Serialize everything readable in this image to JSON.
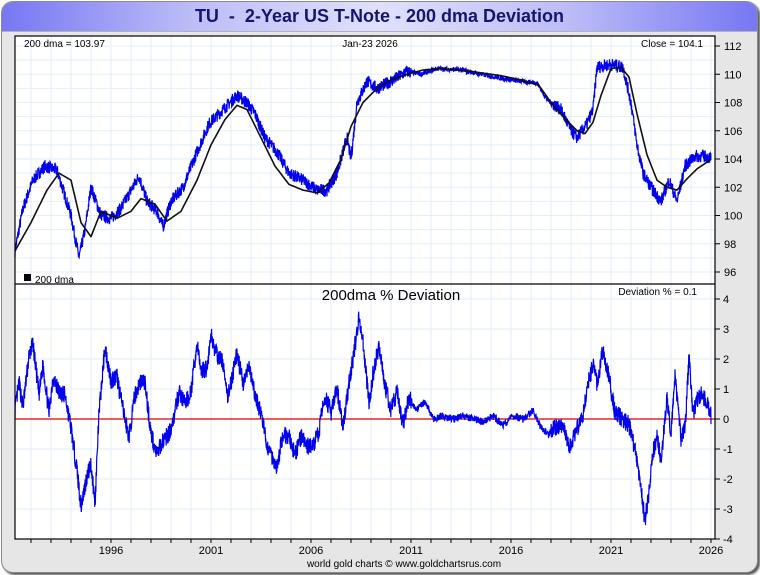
{
  "window": {
    "title": "TU  -  2-Year US T-Note - 200 dma Deviation",
    "footer": "world gold charts © www.goldchartsrus.com"
  },
  "colors": {
    "price": "#0000ee",
    "dma": "#111111",
    "deviation": "#0000ee",
    "zero_line": "#dd0000",
    "grid": "#e3eef8",
    "title_text": "#15156e"
  },
  "chart_data": [
    {
      "type": "line",
      "panel": "price",
      "title": "",
      "header_left": "200 dma = 103.97",
      "header_center": "Jan-23  2026",
      "header_right": "Close = 104.1",
      "legend": [
        {
          "label": "200 dma",
          "color": "#111111"
        }
      ],
      "legend_position": "bottom-left",
      "xlim": [
        1991.2,
        2026.2
      ],
      "ylim": [
        95.5,
        112.7
      ],
      "yticks": [
        96,
        98,
        100,
        102,
        104,
        106,
        108,
        110,
        112
      ],
      "grid": true,
      "series": [
        {
          "name": "Close",
          "x": [
            1991.2,
            1991.6,
            1992.1,
            1992.7,
            1993.3,
            1994.0,
            1994.4,
            1994.7,
            1995.0,
            1995.5,
            1996.0,
            1996.5,
            1997.4,
            1997.8,
            1998.3,
            1998.6,
            1999.0,
            1999.6,
            2000.3,
            2000.9,
            2001.6,
            2002.3,
            2002.8,
            2003.2,
            2003.7,
            2004.3,
            2004.9,
            2005.6,
            2006.3,
            2006.8,
            2007.3,
            2007.8,
            2008.0,
            2008.3,
            2008.8,
            2009.3,
            2010.0,
            2010.8,
            2011.5,
            2012.3,
            2013.5,
            2014.5,
            2015.6,
            2016.5,
            2017.3,
            2017.8,
            2018.5,
            2019.0,
            2019.3,
            2019.8,
            2020.1,
            2020.3,
            2021.0,
            2021.6,
            2022.0,
            2022.3,
            2022.6,
            2023.0,
            2023.5,
            2023.9,
            2024.3,
            2024.7,
            2025.2,
            2025.6,
            2026.0
          ],
          "values": [
            97.5,
            100.5,
            102.5,
            103.5,
            103.2,
            100.0,
            97.0,
            99.0,
            102.0,
            100.0,
            99.8,
            100.5,
            102.8,
            101.0,
            100.3,
            99.2,
            101.0,
            102.0,
            104.5,
            106.5,
            107.5,
            108.5,
            108.0,
            107.2,
            105.5,
            104.5,
            103.0,
            102.5,
            101.8,
            101.8,
            103.0,
            105.5,
            104.0,
            108.0,
            109.5,
            109.0,
            109.5,
            110.2,
            110.0,
            110.4,
            110.3,
            110.0,
            109.7,
            109.5,
            109.4,
            108.2,
            107.5,
            106.0,
            105.5,
            106.5,
            107.5,
            110.5,
            110.7,
            110.5,
            108.0,
            105.0,
            103.0,
            102.0,
            101.0,
            102.5,
            101.0,
            103.5,
            104.2,
            104.2,
            104.1
          ]
        },
        {
          "name": "200 dma",
          "x": [
            1991.2,
            1992.0,
            1992.8,
            1993.4,
            1994.0,
            1994.5,
            1995.0,
            1995.5,
            1996.3,
            1997.0,
            1997.5,
            1998.2,
            1998.8,
            1999.5,
            2000.3,
            2001.0,
            2001.7,
            2002.3,
            2002.8,
            2003.5,
            2004.2,
            2004.9,
            2005.6,
            2006.3,
            2006.9,
            2007.5,
            2008.0,
            2008.6,
            2009.3,
            2010.0,
            2010.8,
            2011.6,
            2012.5,
            2014.0,
            2015.5,
            2016.5,
            2017.4,
            2018.0,
            2018.6,
            2019.3,
            2019.7,
            2020.1,
            2020.5,
            2021.0,
            2021.5,
            2021.9,
            2022.3,
            2022.8,
            2023.3,
            2023.8,
            2024.3,
            2024.8,
            2025.3,
            2026.0
          ],
          "values": [
            97.5,
            99.5,
            101.8,
            103.0,
            102.5,
            99.5,
            98.5,
            100.3,
            99.8,
            100.3,
            101.2,
            100.8,
            99.6,
            100.3,
            102.5,
            105.0,
            106.8,
            107.8,
            107.5,
            105.5,
            103.5,
            102.2,
            101.8,
            101.6,
            102.3,
            104.0,
            106.3,
            108.0,
            109.0,
            109.6,
            110.0,
            110.3,
            110.4,
            110.2,
            109.9,
            109.6,
            109.2,
            108.0,
            107.0,
            106.0,
            105.8,
            106.6,
            108.5,
            110.4,
            110.5,
            109.8,
            107.2,
            104.3,
            102.5,
            102.0,
            101.8,
            102.6,
            103.3,
            103.97
          ]
        }
      ]
    },
    {
      "type": "line",
      "panel": "deviation",
      "title": "200dma  %  Deviation",
      "header_right": "Deviation % = 0.1",
      "xlabel": "",
      "ylabel": "",
      "xlim": [
        1991.2,
        2026.2
      ],
      "ylim": [
        -4,
        4
      ],
      "yticks": [
        4,
        3,
        2,
        1,
        0,
        -1,
        -2,
        -3,
        -4
      ],
      "xticks": [
        1996,
        2001,
        2006,
        2011,
        2016,
        2021,
        2026
      ],
      "grid": true,
      "reference_line": 0,
      "series": [
        {
          "name": "Deviation %",
          "x": [
            1991.2,
            1991.4,
            1991.6,
            1991.9,
            1992.1,
            1992.4,
            1992.6,
            1992.9,
            1993.1,
            1993.4,
            1993.7,
            1994.0,
            1994.3,
            1994.5,
            1994.8,
            1995.0,
            1995.2,
            1995.4,
            1995.7,
            1996.0,
            1996.3,
            1996.6,
            1996.9,
            1997.2,
            1997.5,
            1997.7,
            1998.0,
            1998.3,
            1998.6,
            1998.9,
            1999.2,
            1999.4,
            1999.7,
            2000.0,
            2000.3,
            2000.5,
            2000.8,
            2001.0,
            2001.3,
            2001.6,
            2001.8,
            2002.1,
            2002.3,
            2002.6,
            2002.9,
            2003.2,
            2003.5,
            2003.8,
            2004.1,
            2004.3,
            2004.6,
            2004.9,
            2005.2,
            2005.5,
            2005.8,
            2006.1,
            2006.4,
            2006.7,
            2007.0,
            2007.3,
            2007.6,
            2007.9,
            2008.1,
            2008.4,
            2008.6,
            2008.9,
            2009.1,
            2009.4,
            2009.7,
            2010.0,
            2010.3,
            2010.6,
            2010.9,
            2011.3,
            2011.7,
            2012.1,
            2012.6,
            2013.1,
            2013.6,
            2014.1,
            2014.6,
            2015.1,
            2015.6,
            2016.1,
            2016.6,
            2017.1,
            2017.5,
            2017.9,
            2018.2,
            2018.6,
            2018.9,
            2019.2,
            2019.6,
            2019.9,
            2020.1,
            2020.3,
            2020.6,
            2020.9,
            2021.2,
            2021.6,
            2021.9,
            2022.2,
            2022.5,
            2022.7,
            2022.9,
            2023.1,
            2023.3,
            2023.5,
            2023.8,
            2024.0,
            2024.2,
            2024.5,
            2024.7,
            2024.9,
            2025.1,
            2025.3,
            2025.5,
            2025.8,
            2026.0
          ],
          "values": [
            0.3,
            1.2,
            0.4,
            2.1,
            2.5,
            0.8,
            1.8,
            0.2,
            1.4,
            0.9,
            0.8,
            -0.3,
            -1.7,
            -2.9,
            -1.9,
            -1.5,
            -2.8,
            0.2,
            2.4,
            1.3,
            1.4,
            0.3,
            -0.6,
            0.8,
            1.3,
            1.2,
            -0.5,
            -1.2,
            -0.7,
            -0.5,
            0.2,
            0.9,
            0.5,
            0.9,
            2.5,
            1.6,
            1.7,
            2.8,
            2.1,
            1.9,
            0.7,
            1.5,
            2.2,
            1.2,
            1.7,
            0.8,
            0.2,
            -0.9,
            -1.3,
            -1.6,
            -0.5,
            -0.6,
            -1.2,
            -0.6,
            -0.9,
            -0.9,
            -0.4,
            0.8,
            0.2,
            1.0,
            -0.3,
            1.2,
            2.0,
            3.4,
            2.6,
            0.5,
            1.5,
            2.5,
            1.1,
            0.3,
            0.9,
            -0.2,
            0.7,
            0.3,
            0.6,
            0.0,
            0.1,
            0.0,
            0.1,
            0.0,
            -0.1,
            0.1,
            -0.2,
            0.1,
            0.0,
            0.3,
            -0.3,
            -0.5,
            -0.3,
            -0.2,
            -1.0,
            -0.5,
            0.2,
            1.3,
            1.8,
            1.2,
            2.3,
            1.4,
            0.2,
            0.0,
            -0.2,
            -1.0,
            -2.3,
            -3.4,
            -2.5,
            -1.1,
            -0.6,
            -1.4,
            0.7,
            -0.5,
            1.5,
            -0.7,
            -0.3,
            2.0,
            0.2,
            0.6,
            0.8,
            0.6,
            0.1
          ]
        }
      ]
    }
  ]
}
